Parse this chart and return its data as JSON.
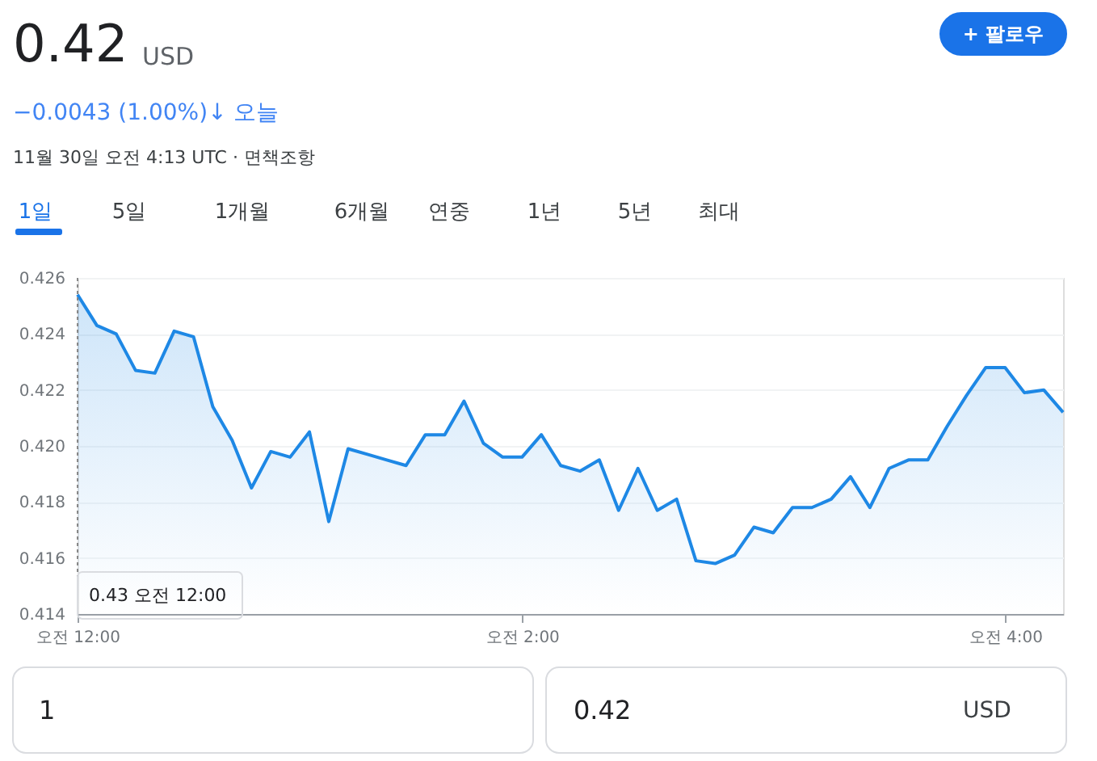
{
  "chart_data": {
    "type": "area",
    "title": "0.42",
    "categories": [
      "오전 12:00",
      null,
      null,
      null,
      null,
      null,
      null,
      null,
      null,
      null,
      null,
      null,
      null,
      null,
      null,
      null,
      null,
      null,
      null,
      null,
      null,
      null,
      null,
      "오전 2:00",
      null,
      null,
      null,
      null,
      null,
      null,
      null,
      null,
      null,
      null,
      null,
      null,
      null,
      null,
      null,
      null,
      null,
      null,
      null,
      null,
      null,
      null,
      null,
      null,
      "오전 4:00",
      null,
      null,
      null
    ],
    "series": [
      {
        "color": "#1e88e5",
        "values": [
          0.4254,
          0.4243,
          0.424,
          0.4227,
          0.4226,
          0.4241,
          0.4239,
          0.4214,
          0.4202,
          0.4185,
          0.4198,
          0.4196,
          0.4205,
          0.4173,
          0.4199,
          0.4197,
          0.4195,
          0.4193,
          0.4204,
          0.4204,
          0.4216,
          0.4201,
          0.4196,
          0.4196,
          0.4204,
          0.4193,
          0.4191,
          0.4195,
          0.4177,
          0.4192,
          0.4177,
          0.4181,
          0.4159,
          0.4158,
          0.4161,
          0.4171,
          0.4169,
          0.4178,
          0.4178,
          0.4181,
          0.4189,
          0.4178,
          0.4192,
          0.4195,
          0.4195,
          0.4207,
          0.4218,
          0.4228,
          0.4228,
          0.4219,
          0.422,
          0.4212
        ]
      }
    ],
    "ylim": [
      0.414,
      0.426
    ],
    "yticks": [
      0.414,
      0.416,
      0.418,
      {
        "value": 0.42,
        "label": "0.420"
      },
      0.422,
      0.424,
      0.426
    ],
    "grid": "y",
    "ref_lines": [
      {
        "axis": "x",
        "value": "오전 12:00",
        "line_style": "dotted",
        "color": "#888888"
      }
    ],
    "annotations": [
      "USD",
      "−0.0043 (1.00%)↓ 오늘",
      "11월 30일 오전 4:13 UTC · 면책조항",
      "+ 팔로우",
      "1일",
      "5일",
      "1개월",
      "6개월",
      "연중",
      "1년",
      "5년",
      "최대",
      "1",
      "0.42",
      "USD",
      "0.43 오전 12:00"
    ]
  }
}
